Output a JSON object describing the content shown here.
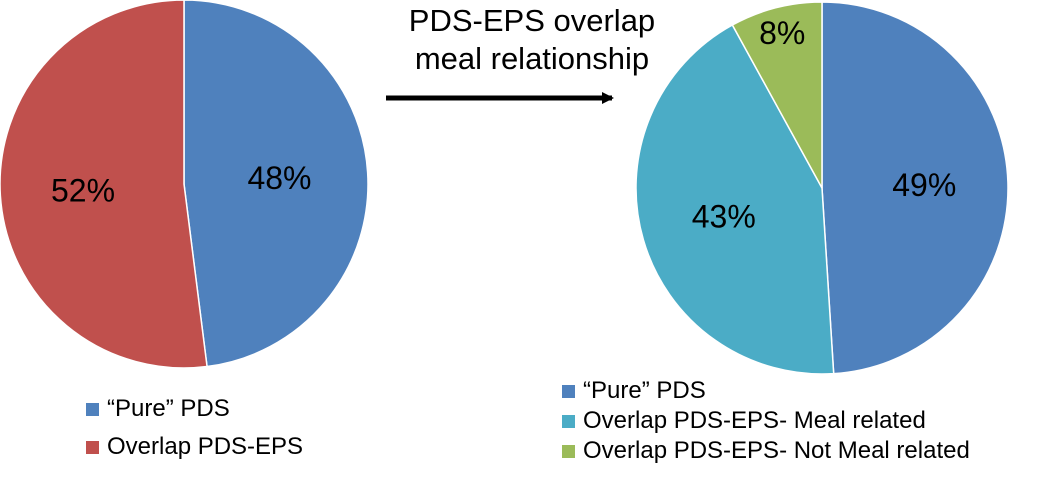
{
  "chart_data": [
    {
      "type": "pie",
      "categories": [
        "“Pure” PDS",
        "Overlap PDS-EPS"
      ],
      "values": [
        48,
        52
      ],
      "labels": [
        "48%",
        "52%"
      ],
      "colors": [
        "#4F81BD",
        "#C0504D"
      ],
      "legend_position": "bottom"
    },
    {
      "type": "pie",
      "categories": [
        "“Pure” PDS",
        "Overlap PDS-EPS- Meal related",
        "Overlap PDS-EPS- Not Meal related"
      ],
      "values": [
        49,
        43,
        8
      ],
      "labels": [
        "49%",
        "43%",
        "8%"
      ],
      "colors": [
        "#4F81BD",
        "#4BACC6",
        "#9BBB59"
      ],
      "legend_position": "bottom"
    }
  ],
  "annotation": {
    "line1": "PDS-EPS overlap",
    "line2": "meal relationship"
  }
}
